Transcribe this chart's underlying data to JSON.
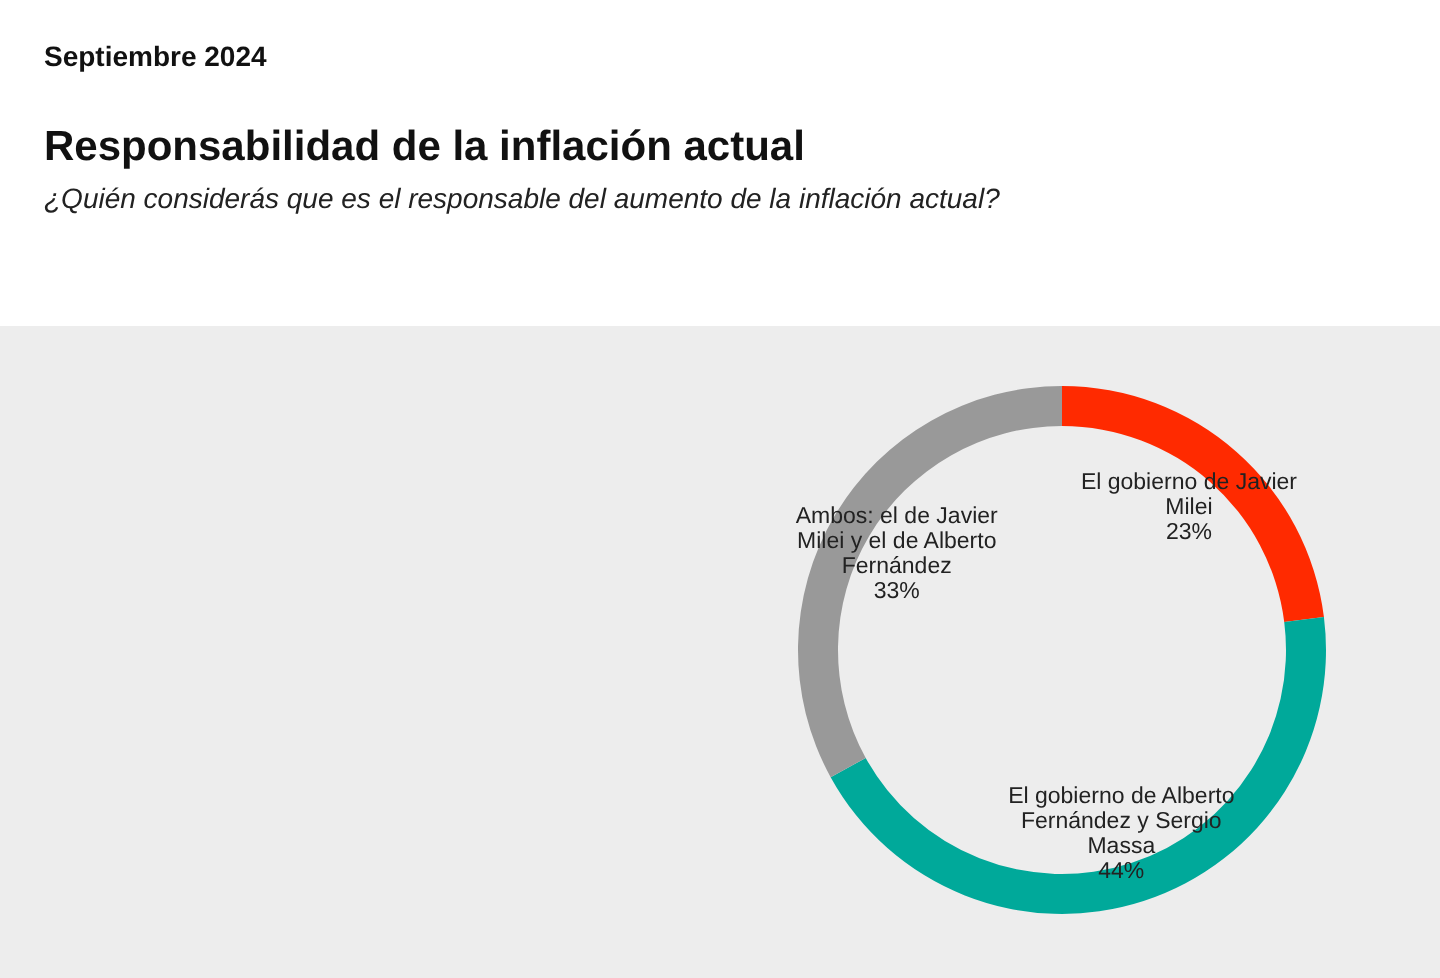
{
  "chart_data": {
    "type": "donut",
    "title": "Responsabilidad de la inflación actual",
    "subtitle": "¿Quién considerás que es el responsable del aumento de la inflación actual?",
    "annotations": [
      "Septiembre 2024"
    ],
    "categories": [
      "El gobierno de Javier Milei",
      "El gobierno de Alberto Fernández y Sergio Massa",
      "Ambos: el de Javier Milei y el de Alberto Fernández"
    ],
    "values": [
      23,
      44,
      33
    ],
    "colors": [
      "#ff2a00",
      "#00a99a",
      "#999999"
    ],
    "value_labels": [
      "23%",
      "44%",
      "33%"
    ]
  }
}
